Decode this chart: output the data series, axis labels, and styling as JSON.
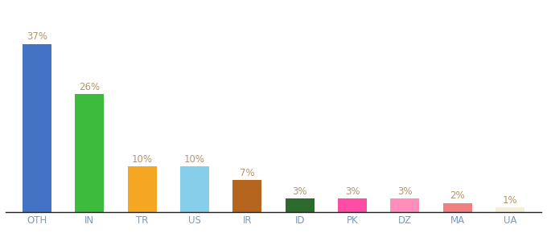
{
  "categories": [
    "OTH",
    "IN",
    "TR",
    "US",
    "IR",
    "ID",
    "PK",
    "DZ",
    "MA",
    "UA"
  ],
  "values": [
    37,
    26,
    10,
    10,
    7,
    3,
    3,
    3,
    2,
    1
  ],
  "bar_colors": [
    "#4472c4",
    "#3dbb3d",
    "#f5a623",
    "#87ceeb",
    "#b5651d",
    "#2d6a2d",
    "#ff4da6",
    "#ff8fba",
    "#f08080",
    "#f5f0dc"
  ],
  "label_color": "#b5956a",
  "background_color": "#ffffff",
  "ylim": [
    0,
    44
  ],
  "bar_width": 0.55,
  "label_fontsize": 8.5,
  "tick_fontsize": 8.5,
  "tick_color": "#7a9abf"
}
